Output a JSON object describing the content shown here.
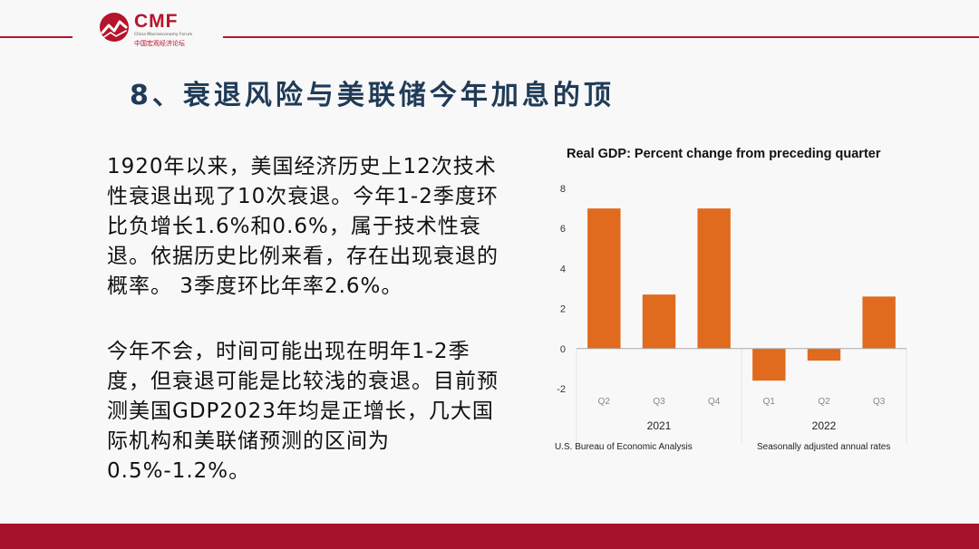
{
  "header": {
    "logo_text": "CMF",
    "logo_subtitle": "China Macroeconomy Forum",
    "logo_cn": "中国宏观经济论坛"
  },
  "slide": {
    "title": "8、衰退风险与美联储今年加息的顶",
    "paragraph_1": "1920年以来，美国经济历史上12次技术性衰退出现了10次衰退。今年1-2季度环比负增长1.6%和0.6%，属于技术性衰退。依据历史比例来看，存在出现衰退的概率。 3季度环比年率2.6%。",
    "paragraph_2": "今年不会，时间可能出现在明年1-2季度，但衰退可能是比较浅的衰退。目前预测美国GDP2023年均是正增长，几大国际机构和美联储预测的区间为0.5%-1.2%。"
  },
  "colors": {
    "brand_red": "#b5142b",
    "title_navy": "#1f3b57",
    "bar_orange": "#e06a1e"
  },
  "chart_data": {
    "type": "bar",
    "title": "Real GDP:  Percent change from preceding quarter",
    "categories": [
      "Q2",
      "Q3",
      "Q4",
      "Q1",
      "Q2",
      "Q3"
    ],
    "groups": [
      {
        "label": "2021",
        "categories": [
          "Q2",
          "Q3",
          "Q4"
        ]
      },
      {
        "label": "2022",
        "categories": [
          "Q1",
          "Q2",
          "Q3"
        ]
      }
    ],
    "values": [
      7.0,
      2.7,
      7.0,
      -1.6,
      -0.6,
      2.6
    ],
    "ylim": [
      -2,
      8
    ],
    "yticks": [
      "8",
      "6",
      "4",
      "2",
      "0",
      "-2"
    ],
    "source_left": "U.S. Bureau of Economic Analysis",
    "source_right": "Seasonally adjusted annual rates",
    "grid": false
  }
}
